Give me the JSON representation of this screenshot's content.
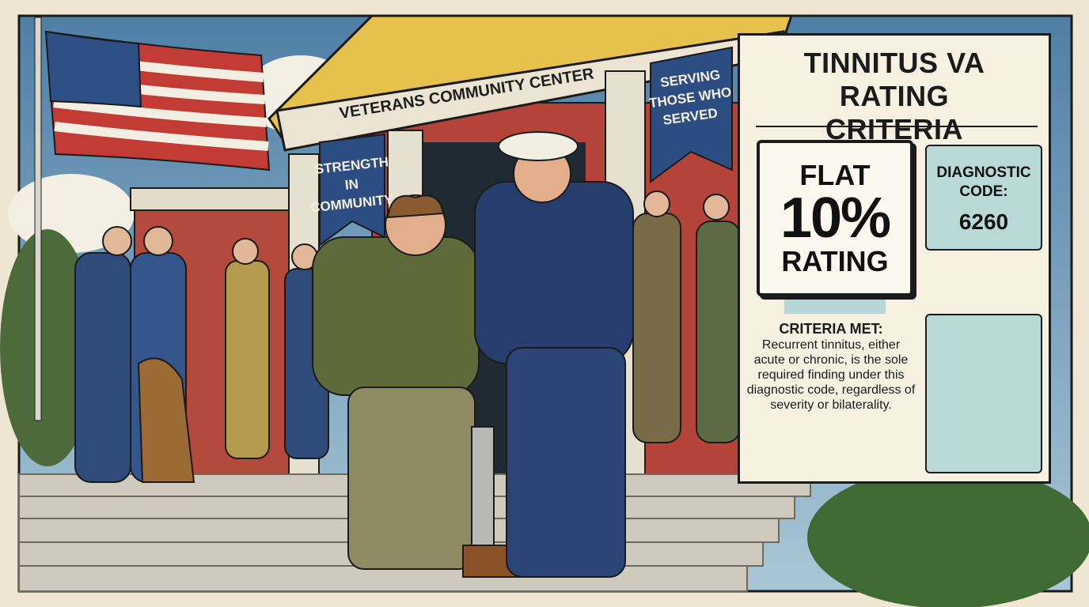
{
  "scene": {
    "building_sign": "VETERANS COMMUNITY CENTER",
    "banners": [
      [
        "STRENGTH",
        "IN",
        "COMMUNITY"
      ],
      [
        "SERVING",
        "THOSE WHO",
        "SERVED"
      ]
    ]
  },
  "panel": {
    "title": "TINNITUS VA RATING CRITERIA",
    "rating": {
      "line1": "FLAT",
      "value": "10%",
      "line2": "RATING"
    },
    "diagnostic": {
      "label": "DIAGNOSTIC CODE:",
      "code": "6260"
    },
    "criteria": {
      "heading": "CRITERIA MET:",
      "text": "Recurrent tinnitus, either acute or chronic, is the sole required finding under this diagnostic code, regardless of severity or bilaterality."
    }
  }
}
